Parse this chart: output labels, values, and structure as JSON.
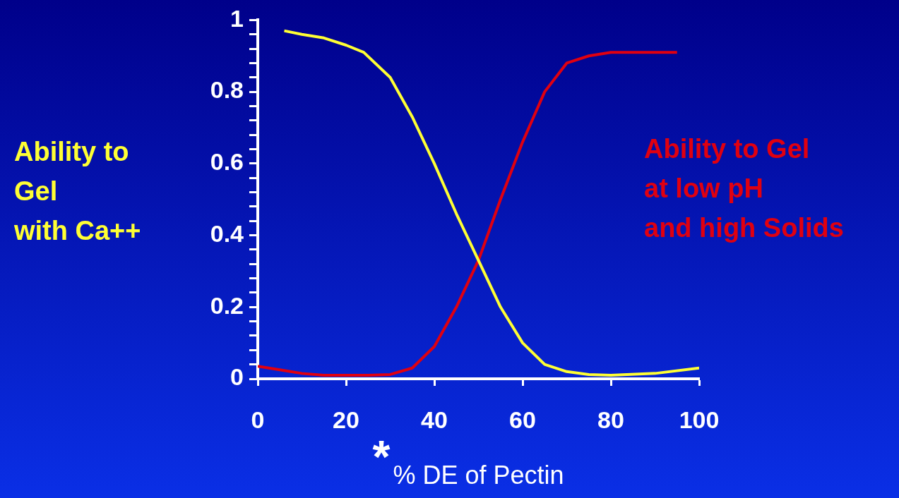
{
  "chart_data": {
    "type": "line",
    "xlabel": "% DE of Pectin",
    "annotations": [
      "*"
    ],
    "xlim": [
      0,
      100
    ],
    "xticks": [
      0,
      20,
      40,
      60,
      80,
      100
    ],
    "ylim": [
      0,
      1
    ],
    "yticks": [
      0,
      {
        "value": 0.04,
        "label": null
      },
      {
        "value": 0.08,
        "label": null
      },
      {
        "value": 0.12,
        "label": null
      },
      {
        "value": 0.16,
        "label": null
      },
      0.2,
      {
        "value": 0.24,
        "label": null
      },
      {
        "value": 0.28,
        "label": null
      },
      {
        "value": 0.32,
        "label": null
      },
      {
        "value": 0.36,
        "label": null
      },
      0.4,
      {
        "value": 0.44,
        "label": null
      },
      {
        "value": 0.48,
        "label": null
      },
      {
        "value": 0.52,
        "label": null
      },
      {
        "value": 0.56,
        "label": null
      },
      0.6,
      {
        "value": 0.64,
        "label": null
      },
      {
        "value": 0.68,
        "label": null
      },
      {
        "value": 0.72,
        "label": null
      },
      {
        "value": 0.76,
        "label": null
      },
      0.8,
      {
        "value": 0.84,
        "label": null
      },
      {
        "value": 0.88,
        "label": null
      },
      {
        "value": 0.92,
        "label": null
      },
      {
        "value": 0.96,
        "label": null
      },
      1
    ],
    "grid": false,
    "legend": false,
    "marker": "none",
    "line_style": "solid",
    "series": [
      {
        "name": "Ability to\nGel\nwith Ca++",
        "color": "#ffff33",
        "x": [
          6,
          10,
          15,
          20,
          24,
          30,
          35,
          40,
          45,
          50,
          55,
          60,
          65,
          70,
          75,
          80,
          90,
          100
        ],
        "values": [
          0.97,
          0.96,
          0.95,
          0.93,
          0.91,
          0.84,
          0.73,
          0.6,
          0.46,
          0.33,
          0.2,
          0.1,
          0.04,
          0.02,
          0.012,
          0.01,
          0.015,
          0.03
        ]
      },
      {
        "name": "Ability to Gel\nat low pH\nand high Solids",
        "color": "#e00010",
        "x": [
          0,
          5,
          10,
          15,
          20,
          25,
          30,
          35,
          40,
          45,
          50,
          55,
          60,
          65,
          70,
          75,
          80,
          90,
          95
        ],
        "values": [
          0.035,
          0.025,
          0.015,
          0.01,
          0.01,
          0.01,
          0.012,
          0.03,
          0.09,
          0.2,
          0.33,
          0.5,
          0.66,
          0.8,
          0.88,
          0.9,
          0.91,
          0.91,
          0.91
        ]
      }
    ]
  }
}
